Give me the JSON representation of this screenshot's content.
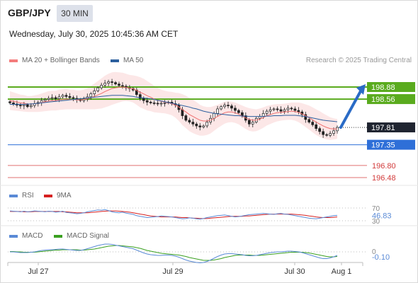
{
  "header": {
    "symbol": "GBP/JPY",
    "timeframe": "30 MIN",
    "datetime": "Wednesday, July 30, 2025 10:45:36 AM CET",
    "credit": "Research © 2025 Trading Central"
  },
  "legend_price": [
    {
      "label": "MA 20 + Bollinger Bands",
      "color": "#f47c7c"
    },
    {
      "label": "MA 50",
      "color": "#2c5f9e"
    }
  ],
  "legend_rsi": [
    {
      "label": "RSI",
      "color": "#5a8ad6"
    },
    {
      "label": "9MA",
      "color": "#d62020"
    }
  ],
  "legend_macd": [
    {
      "label": "MACD",
      "color": "#5a8ad6"
    },
    {
      "label": "MACD Signal",
      "color": "#3aa020"
    }
  ],
  "chart_data": [
    {
      "type": "candlestick",
      "panel": "price",
      "y_range": [
        196.3,
        199.1
      ],
      "current_price": 197.81,
      "levels": [
        {
          "value": 198.88,
          "kind": "resistance",
          "color": "#5aab1e",
          "label": "198.88"
        },
        {
          "value": 198.56,
          "kind": "resistance",
          "color": "#5aab1e",
          "label": "198.56"
        },
        {
          "value": 197.35,
          "kind": "support",
          "color": "#2e6fd8",
          "label": "197.35"
        },
        {
          "value": 196.8,
          "kind": "support",
          "color": "#e07070",
          "label": "196.80"
        },
        {
          "value": 196.48,
          "kind": "support",
          "color": "#e07070",
          "label": "196.48"
        }
      ],
      "current_label": "197.81",
      "closes": [
        198.46,
        198.43,
        198.4,
        198.38,
        198.41,
        198.36,
        198.39,
        198.44,
        198.47,
        198.52,
        198.55,
        198.58,
        198.6,
        198.57,
        198.62,
        198.66,
        198.63,
        198.6,
        198.58,
        198.55,
        198.52,
        198.56,
        198.62,
        198.7,
        198.78,
        198.86,
        198.93,
        198.98,
        199.02,
        199.0,
        198.96,
        198.92,
        198.9,
        198.86,
        198.84,
        198.8,
        198.68,
        198.58,
        198.52,
        198.48,
        198.46,
        198.45,
        198.44,
        198.45,
        198.46,
        198.48,
        198.44,
        198.4,
        198.28,
        198.12,
        198.0,
        197.95,
        197.9,
        197.85,
        197.82,
        197.85,
        197.95,
        198.05,
        198.18,
        198.3,
        198.36,
        198.4,
        198.38,
        198.32,
        198.26,
        198.2,
        198.12,
        198.0,
        197.9,
        197.95,
        198.05,
        198.1,
        198.18,
        198.24,
        198.28,
        198.3,
        198.28,
        198.24,
        198.28,
        198.32,
        198.3,
        198.26,
        198.22,
        198.15,
        198.02,
        197.95,
        197.88,
        197.78,
        197.7,
        197.62,
        197.6,
        197.65,
        197.72,
        197.81
      ],
      "ma20": [
        198.52,
        198.5,
        198.48,
        198.46,
        198.45,
        198.43,
        198.43,
        198.44,
        198.45,
        198.47,
        198.49,
        198.51,
        198.52,
        198.52,
        198.54,
        198.55,
        198.56,
        198.55,
        198.55,
        198.54,
        198.54,
        198.55,
        198.57,
        198.6,
        198.63,
        198.67,
        198.71,
        198.76,
        198.8,
        198.84,
        198.86,
        198.87,
        198.88,
        198.87,
        198.85,
        198.83,
        198.79,
        198.74,
        198.7,
        198.65,
        198.61,
        198.56,
        198.53,
        198.5,
        198.48,
        198.46,
        198.44,
        198.4,
        198.35,
        198.28,
        198.22,
        198.15,
        198.1,
        198.05,
        198.0,
        197.98,
        197.98,
        198.0,
        198.05,
        198.1,
        198.15,
        198.2,
        198.22,
        198.22,
        198.2,
        198.16,
        198.11,
        198.06,
        198.02,
        198.0,
        198.0,
        198.03,
        198.07,
        198.12,
        198.15,
        198.18,
        198.2,
        198.21,
        198.22,
        198.23,
        198.24,
        198.23,
        198.21,
        198.17,
        198.12,
        198.07,
        198.01,
        197.95,
        197.9,
        197.85,
        197.81,
        197.78,
        197.77,
        197.77
      ],
      "ma50": [
        198.42,
        198.42,
        198.42,
        198.42,
        198.42,
        198.43,
        198.43,
        198.44,
        198.45,
        198.46,
        198.47,
        198.48,
        198.49,
        198.5,
        198.51,
        198.52,
        198.53,
        198.54,
        198.55,
        198.56,
        198.57,
        198.58,
        198.59,
        198.6,
        198.61,
        198.62,
        198.63,
        198.64,
        198.65,
        198.66,
        198.66,
        198.66,
        198.66,
        198.65,
        198.64,
        198.63,
        198.61,
        198.6,
        198.59,
        198.58,
        198.57,
        198.55,
        198.53,
        198.51,
        198.49,
        198.47,
        198.45,
        198.43,
        198.41,
        198.39,
        198.37,
        198.35,
        198.32,
        198.3,
        198.27,
        198.24,
        198.22,
        198.2,
        198.18,
        198.17,
        198.16,
        198.15,
        198.14,
        198.13,
        198.12,
        198.12,
        198.11,
        198.11,
        198.1,
        198.1,
        198.1,
        198.1,
        198.1,
        198.11,
        198.11,
        198.12,
        198.12,
        198.12,
        198.13,
        198.13,
        198.13,
        198.13,
        198.12,
        198.11,
        198.1,
        198.08,
        198.06,
        198.04,
        198.02,
        198.0,
        197.99,
        197.98,
        197.97,
        197.96
      ],
      "bb_width": [
        0.25,
        0.24,
        0.23,
        0.22,
        0.22,
        0.21,
        0.21,
        0.22,
        0.23,
        0.24,
        0.25,
        0.26,
        0.26,
        0.26,
        0.27,
        0.27,
        0.27,
        0.26,
        0.26,
        0.25,
        0.25,
        0.26,
        0.28,
        0.31,
        0.34,
        0.37,
        0.4,
        0.42,
        0.43,
        0.43,
        0.42,
        0.4,
        0.38,
        0.36,
        0.35,
        0.36,
        0.38,
        0.4,
        0.4,
        0.39,
        0.37,
        0.35,
        0.33,
        0.31,
        0.3,
        0.3,
        0.31,
        0.33,
        0.37,
        0.41,
        0.43,
        0.44,
        0.44,
        0.43,
        0.41,
        0.39,
        0.37,
        0.35,
        0.33,
        0.31,
        0.3,
        0.29,
        0.28,
        0.27,
        0.27,
        0.27,
        0.28,
        0.29,
        0.3,
        0.3,
        0.29,
        0.28,
        0.27,
        0.26,
        0.25,
        0.24,
        0.23,
        0.22,
        0.22,
        0.22,
        0.23,
        0.24,
        0.26,
        0.28,
        0.3,
        0.32,
        0.33,
        0.34,
        0.34,
        0.33,
        0.32,
        0.3,
        0.28,
        0.26
      ],
      "projection": {
        "from": 197.81,
        "to": 198.88
      }
    },
    {
      "type": "line",
      "panel": "rsi",
      "y_range": [
        25,
        80
      ],
      "ticks": [
        {
          "value": 70,
          "label": "70"
        },
        {
          "value": 30,
          "label": "30"
        }
      ],
      "current_label": "46.83",
      "rsi": [
        61,
        60,
        59,
        58,
        60,
        58,
        59,
        61,
        60,
        59,
        58,
        60,
        59,
        57,
        58,
        60,
        56,
        55,
        54,
        52,
        53,
        55,
        58,
        60,
        62,
        64,
        63,
        65,
        62,
        58,
        56,
        55,
        57,
        54,
        52,
        50,
        46,
        44,
        42,
        40,
        41,
        42,
        43,
        45,
        44,
        43,
        42,
        40,
        38,
        36,
        37,
        39,
        38,
        36,
        35,
        37,
        40,
        42,
        44,
        46,
        47,
        48,
        46,
        44,
        42,
        43,
        45,
        47,
        49,
        50,
        51,
        52,
        53,
        52,
        51,
        50,
        52,
        53,
        51,
        50,
        48,
        46,
        44,
        42,
        40,
        38,
        37,
        36,
        38,
        40,
        42,
        44,
        46,
        46.83
      ],
      "ma9": [
        59,
        59,
        59,
        59,
        58,
        58,
        58,
        59,
        59,
        59,
        59,
        59,
        59,
        59,
        59,
        58,
        58,
        57,
        56,
        55,
        55,
        55,
        55,
        56,
        57,
        58,
        59,
        60,
        61,
        61,
        61,
        60,
        59,
        58,
        57,
        55,
        53,
        51,
        49,
        47,
        45,
        44,
        43,
        42,
        42,
        42,
        42,
        42,
        41,
        40,
        40,
        39,
        38,
        38,
        37,
        37,
        37,
        38,
        39,
        40,
        41,
        42,
        43,
        44,
        44,
        44,
        44,
        45,
        45,
        46,
        47,
        48,
        49,
        50,
        51,
        51,
        51,
        51,
        51,
        51,
        51,
        50,
        49,
        48,
        47,
        45,
        44,
        42,
        41,
        40,
        40,
        40,
        41,
        42
      ]
    },
    {
      "type": "line",
      "panel": "macd",
      "y_range": [
        -0.35,
        0.25
      ],
      "ticks": [
        {
          "value": 0,
          "label": "0"
        }
      ],
      "current_label": "-0.10",
      "macd": [
        0.0,
        0.0,
        -0.01,
        -0.02,
        -0.02,
        -0.02,
        -0.01,
        0.0,
        0.02,
        0.04,
        0.05,
        0.06,
        0.06,
        0.07,
        0.08,
        0.08,
        0.07,
        0.06,
        0.05,
        0.04,
        0.04,
        0.06,
        0.09,
        0.12,
        0.15,
        0.18,
        0.2,
        0.22,
        0.22,
        0.21,
        0.19,
        0.17,
        0.15,
        0.13,
        0.11,
        0.09,
        0.05,
        0.01,
        -0.03,
        -0.06,
        -0.08,
        -0.09,
        -0.1,
        -0.1,
        -0.09,
        -0.09,
        -0.1,
        -0.12,
        -0.15,
        -0.19,
        -0.23,
        -0.26,
        -0.28,
        -0.3,
        -0.31,
        -0.3,
        -0.27,
        -0.23,
        -0.18,
        -0.13,
        -0.09,
        -0.06,
        -0.05,
        -0.05,
        -0.06,
        -0.07,
        -0.08,
        -0.1,
        -0.11,
        -0.11,
        -0.1,
        -0.08,
        -0.06,
        -0.04,
        -0.02,
        -0.01,
        0.0,
        0.0,
        0.01,
        0.02,
        0.02,
        0.01,
        0.0,
        -0.02,
        -0.05,
        -0.08,
        -0.11,
        -0.14,
        -0.17,
        -0.19,
        -0.19,
        -0.17,
        -0.14,
        -0.1
      ],
      "signal": [
        0.01,
        0.01,
        0.0,
        0.0,
        -0.01,
        -0.01,
        -0.01,
        -0.01,
        0.0,
        0.01,
        0.02,
        0.03,
        0.04,
        0.05,
        0.05,
        0.06,
        0.06,
        0.06,
        0.06,
        0.06,
        0.05,
        0.05,
        0.06,
        0.07,
        0.08,
        0.1,
        0.12,
        0.14,
        0.16,
        0.17,
        0.18,
        0.18,
        0.17,
        0.16,
        0.15,
        0.14,
        0.12,
        0.1,
        0.07,
        0.04,
        0.02,
        0.0,
        -0.02,
        -0.04,
        -0.05,
        -0.06,
        -0.07,
        -0.08,
        -0.09,
        -0.11,
        -0.13,
        -0.16,
        -0.18,
        -0.2,
        -0.22,
        -0.24,
        -0.24,
        -0.24,
        -0.23,
        -0.21,
        -0.19,
        -0.16,
        -0.14,
        -0.12,
        -0.1,
        -0.09,
        -0.09,
        -0.09,
        -0.09,
        -0.1,
        -0.1,
        -0.1,
        -0.09,
        -0.08,
        -0.07,
        -0.06,
        -0.05,
        -0.04,
        -0.03,
        -0.02,
        -0.01,
        -0.01,
        -0.01,
        -0.01,
        -0.02,
        -0.03,
        -0.05,
        -0.07,
        -0.09,
        -0.11,
        -0.13,
        -0.14,
        -0.14,
        -0.13
      ]
    }
  ],
  "x_axis": {
    "labels": [
      "Jul 27",
      "Jul 29",
      "Jul 30",
      "Aug 1"
    ]
  }
}
